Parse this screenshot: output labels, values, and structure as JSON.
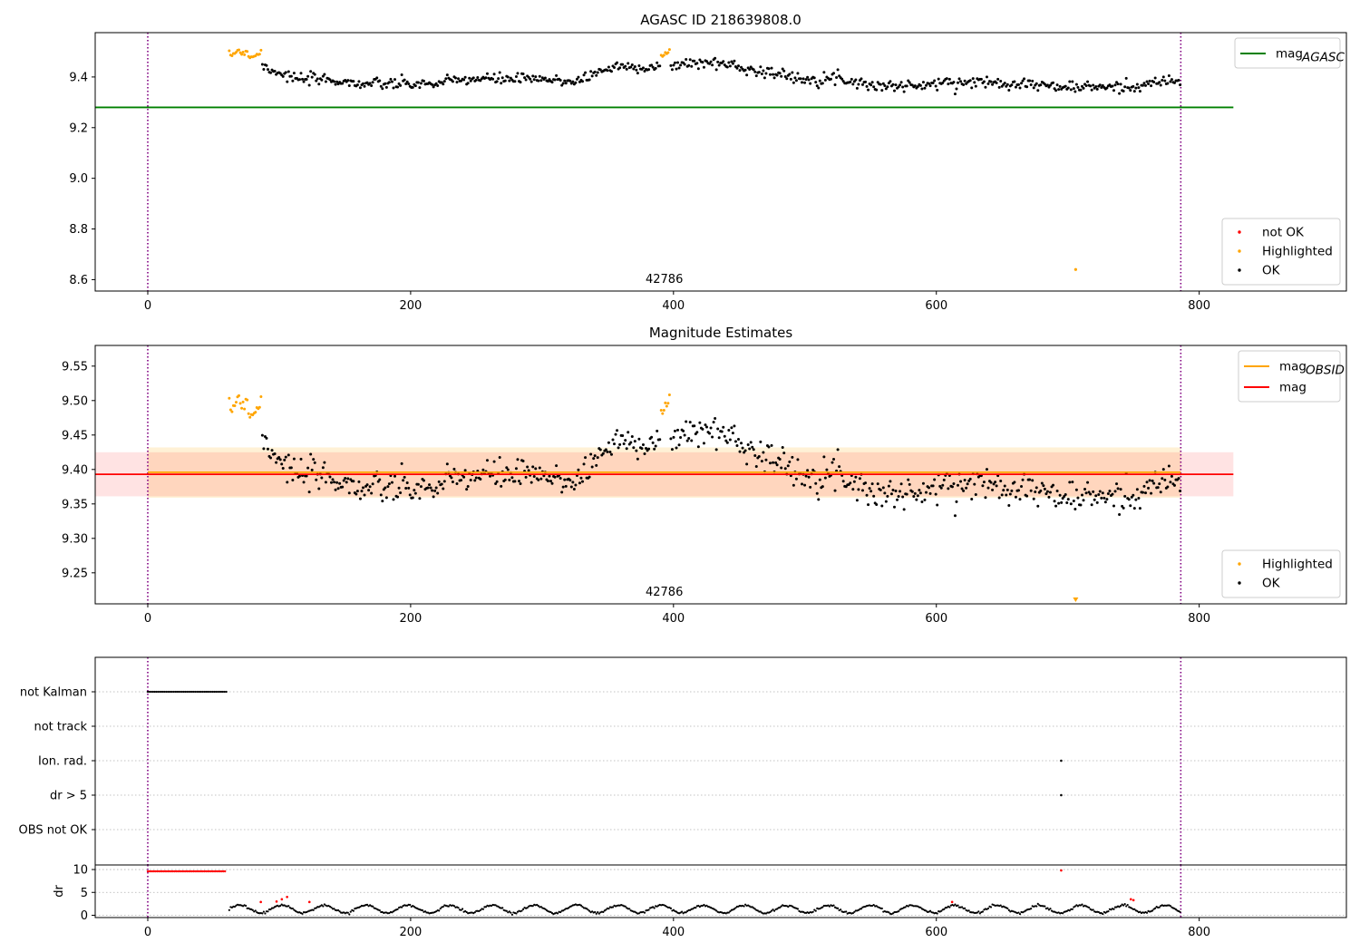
{
  "colors": {
    "ok": "#000000",
    "highlighted": "#ffa500",
    "not_ok": "#ff0000",
    "agasc_line": "#008000",
    "obsid_line": "#ffa500",
    "mag_line": "#ff0000",
    "obsid_band": "#ffa500",
    "mag_band": "#ff0000",
    "vline": "#800080",
    "grid": "#b0b0b0"
  },
  "chart_data": [
    {
      "id": "agasc",
      "type": "scatter",
      "title": "AGASC ID 218639808.0",
      "xlim": [
        -40,
        912
      ],
      "ylim": [
        8.555,
        9.575
      ],
      "xticks": [
        0,
        200,
        400,
        600,
        800
      ],
      "yticks": [
        8.6,
        8.8,
        9.0,
        9.2,
        9.4
      ],
      "ytick_labels": [
        "8.6",
        "8.8",
        "9.0",
        "9.2",
        "9.4"
      ],
      "vlines": [
        0,
        786
      ],
      "annotation": {
        "text": "42786",
        "x": 393
      },
      "hlines": [
        {
          "name": "mag_AGASC",
          "y": 9.28,
          "x": [
            -40,
            826
          ],
          "color": "#008000"
        }
      ],
      "legend_lines": {
        "position": "upper right",
        "entries": [
          {
            "label": "mag",
            "sub": "AGASC",
            "color": "#008000"
          }
        ]
      },
      "legend_points": {
        "position": "lower right",
        "entries": [
          {
            "label": "not OK",
            "color": "#ff0000"
          },
          {
            "label": "Highlighted",
            "color": "#ffa500"
          },
          {
            "label": "OK",
            "color": "#000000"
          }
        ]
      },
      "outlier": {
        "x": 706,
        "y": 8.64,
        "color": "#ffa500"
      },
      "magseries": true
    },
    {
      "id": "estimates",
      "type": "scatter",
      "title": "Magnitude Estimates",
      "xlim": [
        -40,
        912
      ],
      "ylim": [
        9.205,
        9.58
      ],
      "xticks": [
        0,
        200,
        400,
        600,
        800
      ],
      "yticks": [
        9.25,
        9.3,
        9.35,
        9.4,
        9.45,
        9.5,
        9.55
      ],
      "ytick_labels": [
        "9.25",
        "9.30",
        "9.35",
        "9.40",
        "9.45",
        "9.50",
        "9.55"
      ],
      "vlines": [
        0,
        786
      ],
      "annotation": {
        "text": "42786",
        "x": 393
      },
      "bands": [
        {
          "name": "mag_OBSID",
          "x": [
            0,
            786
          ],
          "y": [
            9.359,
            9.432
          ],
          "color": "#ffa500",
          "opacity": 0.16
        },
        {
          "name": "mag",
          "x": [
            -40,
            826
          ],
          "y": [
            9.361,
            9.425
          ],
          "color": "#ff0000",
          "opacity": 0.11
        }
      ],
      "hlines": [
        {
          "name": "mag_OBSID",
          "y": 9.396,
          "x": [
            0,
            786
          ],
          "color": "#ffa500"
        },
        {
          "name": "mag",
          "y": 9.393,
          "x": [
            -40,
            826
          ],
          "color": "#ff0000"
        }
      ],
      "legend_lines": {
        "position": "upper right",
        "entries": [
          {
            "label": "mag",
            "sub": "OBSID",
            "color": "#ffa500"
          },
          {
            "label": "mag",
            "sub": "",
            "color": "#ff0000"
          }
        ]
      },
      "legend_points": {
        "position": "lower right",
        "entries": [
          {
            "label": "Highlighted",
            "color": "#ffa500"
          },
          {
            "label": "OK",
            "color": "#000000"
          }
        ]
      },
      "outlier_marker": {
        "x": 706,
        "direction": "down",
        "color": "#ffa500"
      },
      "magseries": true
    },
    {
      "id": "flags",
      "type": "scatter",
      "xlim": [
        -40,
        912
      ],
      "categories": [
        "not Kalman",
        "not track",
        "Ion. rad.",
        "dr > 5",
        "OBS not OK"
      ],
      "vlines": [
        0,
        786
      ],
      "grid": true,
      "flag_points": [
        {
          "category": "not Kalman",
          "x_range": [
            0,
            60
          ]
        },
        {
          "category": "Ion. rad.",
          "x": [
            695
          ]
        },
        {
          "category": "dr > 5",
          "x": [
            695
          ]
        }
      ]
    },
    {
      "id": "dr",
      "type": "scatter",
      "ylabel": "dr",
      "xlim": [
        -40,
        912
      ],
      "ylim": [
        -0.5,
        11
      ],
      "xticks": [
        0,
        200,
        400,
        600,
        800
      ],
      "yticks": [
        0,
        5,
        10
      ],
      "ytick_labels": [
        "0",
        "5",
        "10"
      ],
      "vlines": [
        0,
        786
      ],
      "clipped_red": {
        "x_range": [
          0,
          60
        ],
        "y": 9.6
      },
      "red_points": [
        {
          "x": 86,
          "y": 2.9
        },
        {
          "x": 98,
          "y": 3.0
        },
        {
          "x": 102,
          "y": 3.5
        },
        {
          "x": 106,
          "y": 4.0
        },
        {
          "x": 123,
          "y": 2.9
        },
        {
          "x": 612,
          "y": 2.9
        },
        {
          "x": 695,
          "y": 9.8
        },
        {
          "x": 748,
          "y": 3.5
        },
        {
          "x": 750,
          "y": 3.3
        }
      ]
    }
  ]
}
